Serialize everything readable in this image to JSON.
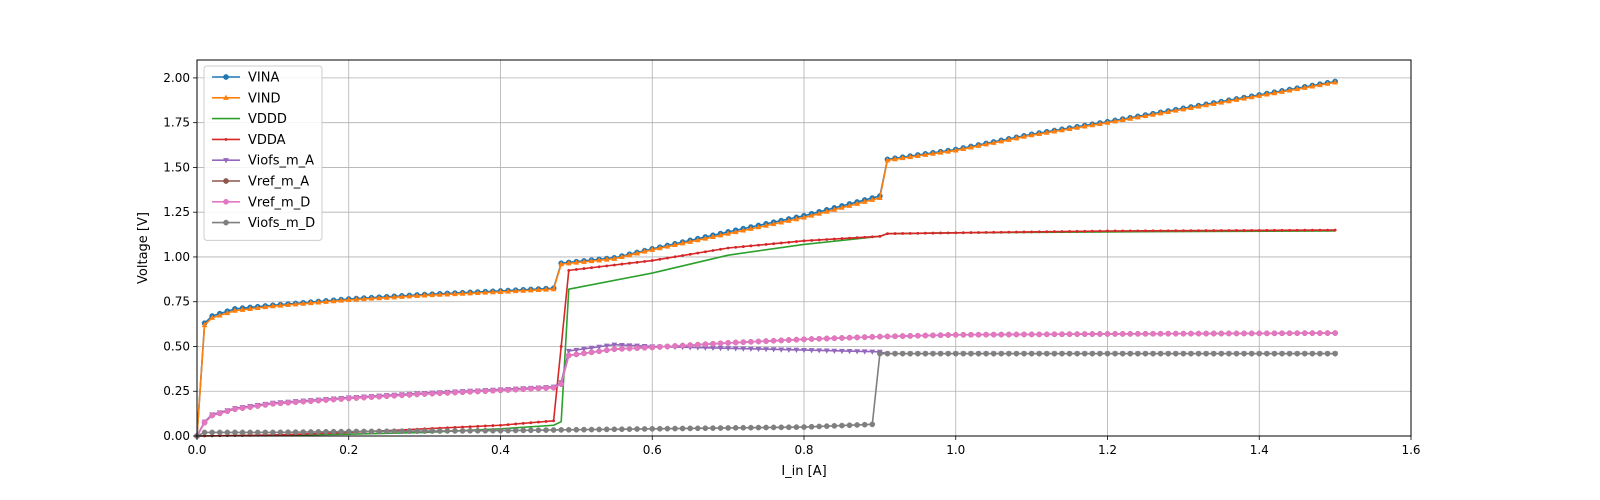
{
  "chart_data": {
    "type": "line",
    "title": "",
    "xlabel": "I_in [A]",
    "ylabel": "Voltage [V]",
    "xlim": [
      0,
      1.6
    ],
    "ylim": [
      0,
      2.1
    ],
    "xticks": [
      "0.0",
      "0.2",
      "0.4",
      "0.6",
      "0.8",
      "1.0",
      "1.2",
      "1.4",
      "1.6"
    ],
    "yticks": [
      "0.00",
      "0.25",
      "0.50",
      "0.75",
      "1.00",
      "1.25",
      "1.50",
      "1.75",
      "2.00"
    ],
    "grid": true,
    "legend_position": "top-left",
    "series": [
      {
        "name": "VINA",
        "color": "#1f77b4",
        "marker": "circle",
        "marker_step": 0.01,
        "points": [
          [
            0,
            0
          ],
          [
            0.01,
            0.63
          ],
          [
            0.02,
            0.67
          ],
          [
            0.05,
            0.71
          ],
          [
            0.1,
            0.73
          ],
          [
            0.2,
            0.765
          ],
          [
            0.3,
            0.79
          ],
          [
            0.4,
            0.81
          ],
          [
            0.47,
            0.825
          ],
          [
            0.48,
            0.965
          ],
          [
            0.55,
            0.995
          ],
          [
            0.6,
            1.045
          ],
          [
            0.7,
            1.14
          ],
          [
            0.8,
            1.23
          ],
          [
            0.9,
            1.34
          ],
          [
            0.91,
            1.545
          ],
          [
            1.0,
            1.6
          ],
          [
            1.1,
            1.685
          ],
          [
            1.2,
            1.755
          ],
          [
            1.3,
            1.83
          ],
          [
            1.4,
            1.905
          ],
          [
            1.5,
            1.98
          ]
        ]
      },
      {
        "name": "VIND",
        "color": "#ff7f0e",
        "marker": "triangle",
        "marker_step": 0.01,
        "points": [
          [
            0,
            0
          ],
          [
            0.01,
            0.62
          ],
          [
            0.02,
            0.66
          ],
          [
            0.05,
            0.7
          ],
          [
            0.1,
            0.725
          ],
          [
            0.2,
            0.76
          ],
          [
            0.3,
            0.785
          ],
          [
            0.4,
            0.805
          ],
          [
            0.47,
            0.82
          ],
          [
            0.48,
            0.96
          ],
          [
            0.55,
            0.99
          ],
          [
            0.6,
            1.04
          ],
          [
            0.7,
            1.13
          ],
          [
            0.8,
            1.22
          ],
          [
            0.9,
            1.33
          ],
          [
            0.91,
            1.54
          ],
          [
            1.0,
            1.595
          ],
          [
            1.1,
            1.68
          ],
          [
            1.2,
            1.75
          ],
          [
            1.3,
            1.825
          ],
          [
            1.4,
            1.9
          ],
          [
            1.5,
            1.975
          ]
        ]
      },
      {
        "name": "VDDD",
        "color": "#2ca02c",
        "marker": "none",
        "marker_step": 0,
        "points": [
          [
            0,
            0
          ],
          [
            0.1,
            0.005
          ],
          [
            0.2,
            0.01
          ],
          [
            0.3,
            0.02
          ],
          [
            0.4,
            0.04
          ],
          [
            0.47,
            0.06
          ],
          [
            0.48,
            0.08
          ],
          [
            0.49,
            0.82
          ],
          [
            0.6,
            0.91
          ],
          [
            0.7,
            1.01
          ],
          [
            0.8,
            1.07
          ],
          [
            0.9,
            1.115
          ],
          [
            0.91,
            1.13
          ],
          [
            1.0,
            1.135
          ],
          [
            1.2,
            1.14
          ],
          [
            1.5,
            1.145
          ]
        ]
      },
      {
        "name": "VDDA",
        "color": "#d62728",
        "marker": "dot",
        "marker_step": 0.01,
        "points": [
          [
            0,
            0
          ],
          [
            0.1,
            0.005
          ],
          [
            0.2,
            0.02
          ],
          [
            0.3,
            0.04
          ],
          [
            0.4,
            0.06
          ],
          [
            0.47,
            0.085
          ],
          [
            0.48,
            0.5
          ],
          [
            0.49,
            0.925
          ],
          [
            0.6,
            0.98
          ],
          [
            0.7,
            1.05
          ],
          [
            0.8,
            1.09
          ],
          [
            0.9,
            1.115
          ],
          [
            0.91,
            1.13
          ],
          [
            1.0,
            1.135
          ],
          [
            1.2,
            1.145
          ],
          [
            1.5,
            1.15
          ]
        ]
      },
      {
        "name": "Viofs_m_A",
        "color": "#9467bd",
        "marker": "triangle-down",
        "marker_step": 0.01,
        "points": [
          [
            0,
            0
          ],
          [
            0.01,
            0.08
          ],
          [
            0.02,
            0.12
          ],
          [
            0.05,
            0.155
          ],
          [
            0.1,
            0.185
          ],
          [
            0.2,
            0.215
          ],
          [
            0.3,
            0.24
          ],
          [
            0.4,
            0.26
          ],
          [
            0.47,
            0.275
          ],
          [
            0.48,
            0.3
          ],
          [
            0.49,
            0.475
          ],
          [
            0.55,
            0.51
          ],
          [
            0.6,
            0.5
          ],
          [
            0.7,
            0.49
          ],
          [
            0.8,
            0.48
          ],
          [
            0.9,
            0.47
          ],
          [
            0.91,
            0.46
          ],
          [
            1.0,
            0.46
          ],
          [
            1.2,
            0.46
          ],
          [
            1.5,
            0.46
          ]
        ]
      },
      {
        "name": "Vref_m_A",
        "color": "#8c564b",
        "marker": "circle",
        "marker_step": 0.01,
        "points": [
          [
            0,
            0
          ],
          [
            0.01,
            0.075
          ],
          [
            0.02,
            0.115
          ],
          [
            0.05,
            0.15
          ],
          [
            0.1,
            0.18
          ],
          [
            0.2,
            0.21
          ],
          [
            0.3,
            0.235
          ],
          [
            0.4,
            0.255
          ],
          [
            0.47,
            0.27
          ],
          [
            0.48,
            0.29
          ],
          [
            0.49,
            0.45
          ],
          [
            0.55,
            0.485
          ],
          [
            0.6,
            0.495
          ],
          [
            0.7,
            0.52
          ],
          [
            0.8,
            0.54
          ],
          [
            0.9,
            0.555
          ],
          [
            1.0,
            0.565
          ],
          [
            1.2,
            0.57
          ],
          [
            1.5,
            0.575
          ]
        ]
      },
      {
        "name": "Vref_m_D",
        "color": "#e377c2",
        "marker": "circle",
        "marker_step": 0.01,
        "points": [
          [
            0,
            0
          ],
          [
            0.01,
            0.075
          ],
          [
            0.02,
            0.115
          ],
          [
            0.05,
            0.15
          ],
          [
            0.1,
            0.18
          ],
          [
            0.2,
            0.21
          ],
          [
            0.3,
            0.235
          ],
          [
            0.4,
            0.255
          ],
          [
            0.47,
            0.27
          ],
          [
            0.48,
            0.29
          ],
          [
            0.49,
            0.45
          ],
          [
            0.55,
            0.485
          ],
          [
            0.6,
            0.495
          ],
          [
            0.7,
            0.52
          ],
          [
            0.8,
            0.54
          ],
          [
            0.9,
            0.555
          ],
          [
            1.0,
            0.565
          ],
          [
            1.2,
            0.57
          ],
          [
            1.5,
            0.575
          ]
        ]
      },
      {
        "name": "Viofs_m_D",
        "color": "#7f7f7f",
        "marker": "circle",
        "marker_step": 0.01,
        "points": [
          [
            0,
            0
          ],
          [
            0.01,
            0.02
          ],
          [
            0.1,
            0.02
          ],
          [
            0.2,
            0.025
          ],
          [
            0.4,
            0.03
          ],
          [
            0.5,
            0.035
          ],
          [
            0.6,
            0.04
          ],
          [
            0.7,
            0.045
          ],
          [
            0.8,
            0.05
          ],
          [
            0.89,
            0.065
          ],
          [
            0.9,
            0.46
          ],
          [
            1.0,
            0.46
          ],
          [
            1.2,
            0.46
          ],
          [
            1.5,
            0.46
          ]
        ]
      }
    ]
  }
}
